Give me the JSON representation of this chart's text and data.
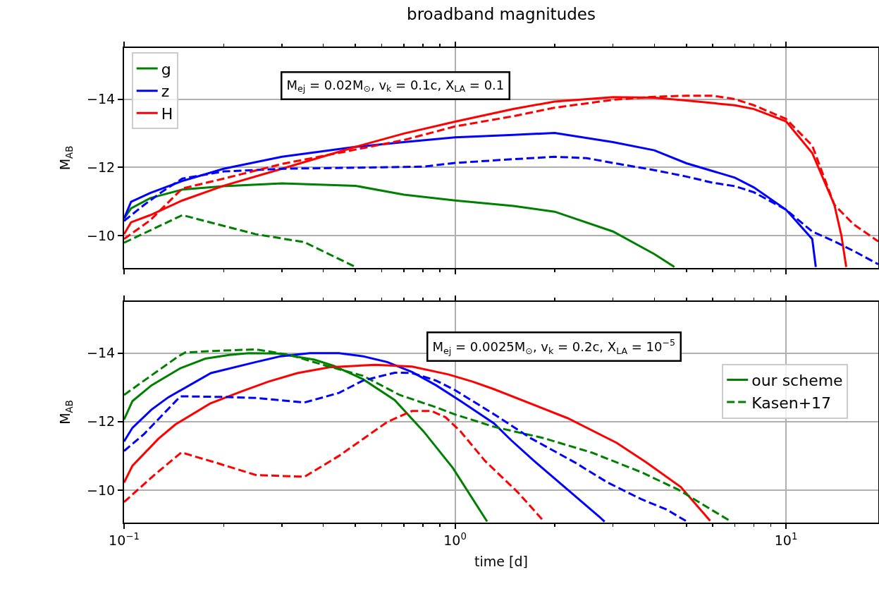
{
  "chart_data": [
    {
      "type": "line",
      "title": "broadband magnitudes",
      "ylabel": "M$_{AB}$",
      "xlim": [
        0.1,
        19
      ],
      "ylim": [
        -9.05,
        -15.5
      ],
      "log": "x",
      "grid": true,
      "legend": "top left",
      "tick_labels": "y",
      "line_style": "solid",
      "xticks": [
        0.1,
        {
          "value": 0.2,
          "label": null
        },
        {
          "value": 0.3,
          "label": null
        },
        {
          "value": 0.4,
          "label": null
        },
        {
          "value": 0.5,
          "label": null
        },
        {
          "value": 0.6,
          "label": null
        },
        {
          "value": 0.7,
          "label": null
        },
        {
          "value": 0.8,
          "label": null
        },
        {
          "value": 0.9,
          "label": null
        },
        1,
        {
          "value": 2,
          "label": null
        },
        {
          "value": 3,
          "label": null
        },
        {
          "value": 4,
          "label": null
        },
        {
          "value": 5,
          "label": null
        },
        {
          "value": 6,
          "label": null
        },
        {
          "value": 7,
          "label": null
        },
        {
          "value": 8,
          "label": null
        },
        {
          "value": 9,
          "label": null
        },
        10
      ],
      "yticks": [
        {
          "value": -14,
          "label": "−14"
        },
        {
          "value": -12,
          "label": "−12"
        },
        {
          "value": -10,
          "label": "−10"
        }
      ],
      "annotations": [
        "M$_{ej}$ = 0.02M$_{⊙}$, v$_{k}$ = 0.1c, X$_{LA}$ = 0.1"
      ],
      "series": [
        {
          "name": "g",
          "color": "#008000",
          "x": [
            0.1,
            0.105,
            0.12,
            0.15,
            0.2,
            0.3,
            0.5,
            0.7,
            1,
            1.5,
            2,
            3,
            4,
            4.6
          ],
          "values": [
            -10.5,
            -10.8,
            -11.1,
            -11.35,
            -11.45,
            -11.53,
            -11.46,
            -11.2,
            -11.03,
            -10.87,
            -10.7,
            -10.12,
            -9.46,
            -9.08
          ]
        },
        {
          "name": "z",
          "color": "#0000ff",
          "x": [
            0.1,
            0.105,
            0.12,
            0.15,
            0.2,
            0.3,
            0.5,
            0.7,
            1,
            1.5,
            2,
            3,
            4,
            5,
            7,
            8,
            10,
            12,
            12.3
          ],
          "values": [
            -10.5,
            -10.99,
            -11.25,
            -11.6,
            -11.96,
            -12.31,
            -12.6,
            -12.74,
            -12.88,
            -12.95,
            -13.01,
            -12.74,
            -12.5,
            -12.12,
            -11.7,
            -11.41,
            -10.76,
            -9.9,
            -9.08
          ]
        },
        {
          "name": "H",
          "color": "#ff0000",
          "x": [
            0.1,
            0.105,
            0.12,
            0.15,
            0.2,
            0.3,
            0.5,
            0.7,
            1,
            1.5,
            2,
            3,
            4,
            5,
            7,
            8,
            10,
            12,
            14,
            14.7,
            15.2
          ],
          "values": [
            -10.04,
            -10.39,
            -10.6,
            -11.03,
            -11.46,
            -11.96,
            -12.6,
            -12.99,
            -13.34,
            -13.71,
            -13.93,
            -14.06,
            -14.04,
            -13.96,
            -13.82,
            -13.71,
            -13.35,
            -12.42,
            -10.9,
            -10.0,
            -9.08
          ]
        },
        {
          "color": "#008000",
          "line_style": "dashed",
          "x": [
            0.1,
            0.15,
            0.25,
            0.35,
            0.5
          ],
          "values": [
            -9.79,
            -10.6,
            -10.04,
            -9.81,
            -9.08
          ]
        },
        {
          "color": "#0000ff",
          "line_style": "dashed",
          "x": [
            0.1,
            0.115,
            0.131,
            0.15,
            0.2,
            0.3,
            0.5,
            0.8,
            1,
            1.5,
            2,
            2.5,
            3,
            4,
            5,
            6,
            7,
            8,
            10,
            12,
            14,
            16,
            19
          ],
          "values": [
            -10.43,
            -10.9,
            -11.3,
            -11.67,
            -11.88,
            -11.96,
            -11.99,
            -12.02,
            -12.13,
            -12.24,
            -12.31,
            -12.27,
            -12.13,
            -11.92,
            -11.73,
            -11.55,
            -11.45,
            -11.27,
            -10.76,
            -10.12,
            -9.83,
            -9.55,
            -9.16
          ]
        },
        {
          "color": "#ff0000",
          "line_style": "dashed",
          "x": [
            0.1,
            0.12,
            0.15,
            0.2,
            0.3,
            0.5,
            0.7,
            1,
            1.5,
            2,
            3,
            4,
            5,
            6,
            7,
            8,
            10,
            12,
            14,
            16,
            19
          ],
          "values": [
            -9.9,
            -10.45,
            -11.38,
            -11.67,
            -12.1,
            -12.52,
            -12.8,
            -13.2,
            -13.5,
            -13.75,
            -13.98,
            -14.07,
            -14.1,
            -14.1,
            -14.0,
            -13.82,
            -13.42,
            -12.64,
            -10.9,
            -10.33,
            -9.83
          ]
        }
      ]
    },
    {
      "type": "line",
      "xlabel": "time [d]",
      "ylabel": "M$_{AB}$",
      "xlim": [
        0.1,
        19
      ],
      "ylim": [
        -9.05,
        -15.5
      ],
      "log": "x",
      "grid": true,
      "legend": "right",
      "line_style": "solid",
      "xticks": [
        {
          "value": 0.1,
          "label": "10$^{−1}$"
        },
        {
          "value": 0.2,
          "label": null
        },
        {
          "value": 0.3,
          "label": null
        },
        {
          "value": 0.4,
          "label": null
        },
        {
          "value": 0.5,
          "label": null
        },
        {
          "value": 0.6,
          "label": null
        },
        {
          "value": 0.7,
          "label": null
        },
        {
          "value": 0.8,
          "label": null
        },
        {
          "value": 0.9,
          "label": null
        },
        {
          "value": 1,
          "label": "10$^{0}$"
        },
        {
          "value": 2,
          "label": null
        },
        {
          "value": 3,
          "label": null
        },
        {
          "value": 4,
          "label": null
        },
        {
          "value": 5,
          "label": null
        },
        {
          "value": 6,
          "label": null
        },
        {
          "value": 7,
          "label": null
        },
        {
          "value": 8,
          "label": null
        },
        {
          "value": 9,
          "label": null
        },
        {
          "value": 10,
          "label": "10$^{1}$"
        }
      ],
      "yticks": [
        {
          "value": -14,
          "label": "−14"
        },
        {
          "value": -12,
          "label": "−12"
        },
        {
          "value": -10,
          "label": "−10"
        }
      ],
      "annotations": [
        "M$_{ej}$ = 0.0025M$_{⊙}$, v$_{k}$ = 0.2c, X$_{LA}$ = 10$^{−5}$"
      ],
      "series": [
        {
          "name": "our scheme",
          "color": "#008000",
          "x": [
            0.1,
            0.106,
            0.121,
            0.148,
            0.176,
            0.208,
            0.238,
            0.291,
            0.376,
            0.43,
            0.527,
            0.657,
            0.804,
            0.986,
            1.25
          ],
          "values": [
            -12.06,
            -12.6,
            -13.06,
            -13.56,
            -13.84,
            -13.95,
            -14.0,
            -13.99,
            -13.81,
            -13.63,
            -13.24,
            -12.63,
            -11.71,
            -10.64,
            -9.08
          ]
        },
        {
          "color": "#0000ff",
          "x": [
            0.1,
            0.106,
            0.121,
            0.136,
            0.183,
            0.25,
            0.297,
            0.364,
            0.446,
            0.527,
            0.624,
            0.741,
            0.877,
            1.04,
            1.31,
            1.48,
            1.72,
            2.19,
            2.73,
            2.83
          ],
          "values": [
            -11.42,
            -11.82,
            -12.35,
            -12.71,
            -13.42,
            -13.74,
            -13.91,
            -14.0,
            -14.0,
            -13.91,
            -13.74,
            -13.45,
            -13.06,
            -12.6,
            -11.95,
            -11.45,
            -10.88,
            -10.01,
            -9.22,
            -9.08
          ]
        },
        {
          "color": "#ff0000",
          "x": [
            0.1,
            0.106,
            0.127,
            0.143,
            0.182,
            0.226,
            0.273,
            0.334,
            0.417,
            0.574,
            0.741,
            0.954,
            1.13,
            1.31,
            2.19,
            3.08,
            3.78,
            4.81,
            5.9
          ],
          "values": [
            -10.22,
            -10.71,
            -11.5,
            -11.92,
            -12.53,
            -12.88,
            -13.17,
            -13.42,
            -13.59,
            -13.66,
            -13.61,
            -13.38,
            -13.17,
            -12.95,
            -12.1,
            -11.38,
            -10.81,
            -10.09,
            -9.1
          ]
        },
        {
          "name": "Kasen+17",
          "color": "#008000",
          "line_style": "dashed",
          "x": [
            0.1,
            0.115,
            0.146,
            0.153,
            0.191,
            0.25,
            0.317,
            0.409,
            0.527,
            0.68,
            0.876,
            1.0,
            1.31,
            1.85,
            2.6,
            3.66,
            4.73,
            5.6,
            6.77
          ],
          "values": [
            -12.78,
            -13.2,
            -13.91,
            -14.02,
            -14.07,
            -14.11,
            -13.95,
            -13.63,
            -13.34,
            -12.78,
            -12.42,
            -12.21,
            -11.85,
            -11.52,
            -11.09,
            -10.52,
            -10.01,
            -9.58,
            -9.1
          ]
        },
        {
          "color": "#0000ff",
          "line_style": "dashed",
          "x": [
            0.1,
            0.115,
            0.148,
            0.206,
            0.25,
            0.351,
            0.446,
            0.527,
            0.657,
            0.741,
            0.876,
            1.0,
            1.31,
            1.69,
            2.3,
            2.88,
            3.66,
            4.34,
            4.98
          ],
          "values": [
            -11.14,
            -11.64,
            -12.74,
            -12.72,
            -12.69,
            -12.56,
            -12.84,
            -13.2,
            -13.43,
            -13.42,
            -13.2,
            -12.92,
            -12.22,
            -11.52,
            -10.81,
            -10.23,
            -9.73,
            -9.44,
            -9.1
          ]
        },
        {
          "color": "#ff0000",
          "line_style": "dashed",
          "x": [
            0.1,
            0.123,
            0.149,
            0.191,
            0.25,
            0.351,
            0.446,
            0.624,
            0.741,
            0.848,
            0.936,
            1.04,
            1.23,
            1.55,
            1.85
          ],
          "values": [
            -9.65,
            -10.43,
            -11.1,
            -10.79,
            -10.44,
            -10.39,
            -11.0,
            -11.99,
            -12.31,
            -12.31,
            -12.13,
            -11.71,
            -10.86,
            -9.93,
            -9.1
          ]
        }
      ]
    }
  ]
}
